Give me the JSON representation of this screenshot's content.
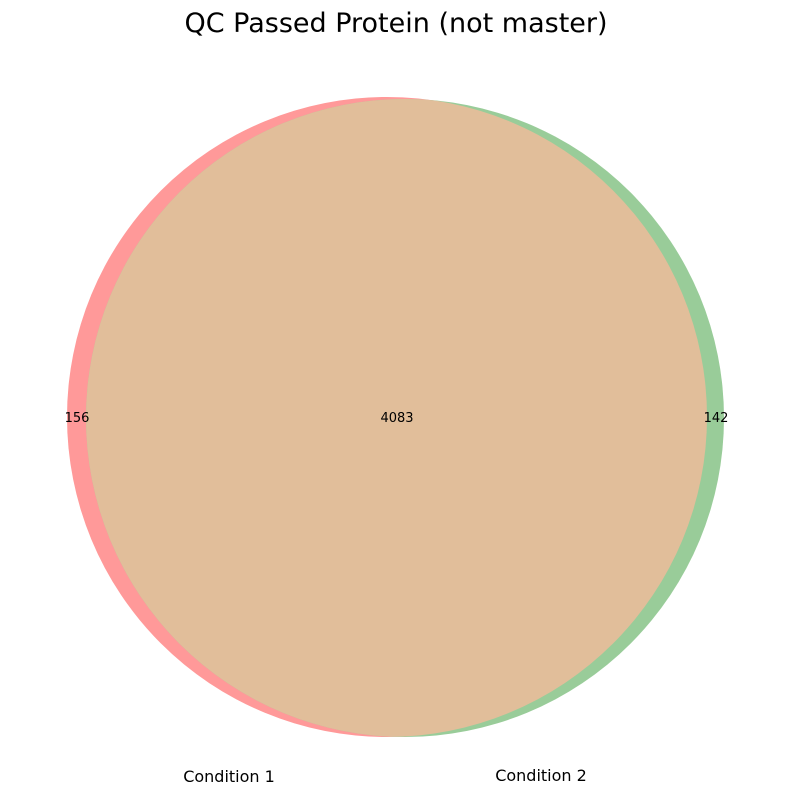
{
  "diagram": {
    "title": "QC Passed Protein (not master)",
    "type": "venn2",
    "sets": [
      {
        "label": "Condition 1",
        "only_count": "156",
        "color": "#ff9999"
      },
      {
        "label": "Condition 2",
        "only_count": "142",
        "color": "#99cc99"
      }
    ],
    "intersection": {
      "count": "4083",
      "color": "#e1be9a"
    }
  }
}
